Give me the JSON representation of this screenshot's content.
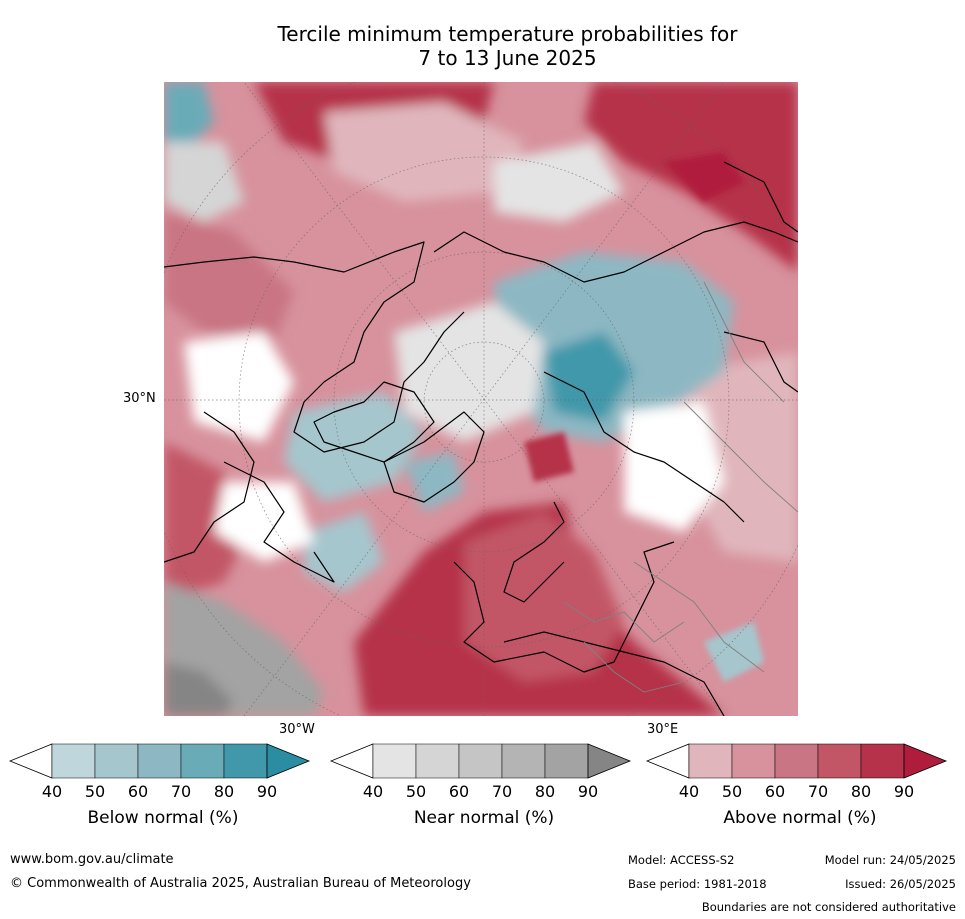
{
  "title_line1": "Tercile minimum temperature probabilities for",
  "title_line2": "7 to 13 June 2025",
  "map": {
    "labels": {
      "lat30": "30°N",
      "lon30w": "30°W",
      "lon30e": "30°E"
    },
    "colors": {
      "above": [
        "#e0b6bc",
        "#d7929d",
        "#c97583",
        "#c25666",
        "#b5324a",
        "#b01c3c"
      ],
      "below": [
        "#bfd6dc",
        "#a6c6cd",
        "#8db8c3",
        "#6aabb8",
        "#4198aa",
        "#2a8da2"
      ],
      "near": [
        "#e4e4e4",
        "#d5d5d5",
        "#c5c5c5",
        "#b4b4b4",
        "#a3a3a3",
        "#858585"
      ],
      "coastline": "#000000",
      "borders": "#808080"
    }
  },
  "colorbars": [
    {
      "title": "Below normal (%)",
      "ticks": [
        "40",
        "50",
        "60",
        "70",
        "80",
        "90"
      ],
      "colors": [
        "#bfd6dc",
        "#a6c6cd",
        "#8db8c3",
        "#6aabb8",
        "#4198aa",
        "#2a8da2"
      ]
    },
    {
      "title": "Near normal (%)",
      "ticks": [
        "40",
        "50",
        "60",
        "70",
        "80",
        "90"
      ],
      "colors": [
        "#e4e4e4",
        "#d5d5d5",
        "#c5c5c5",
        "#b4b4b4",
        "#a3a3a3",
        "#858585"
      ]
    },
    {
      "title": "Above normal (%)",
      "ticks": [
        "40",
        "50",
        "60",
        "70",
        "80",
        "90"
      ],
      "colors": [
        "#e0b6bc",
        "#d7929d",
        "#c97583",
        "#c25666",
        "#b5324a",
        "#b01c3c"
      ]
    }
  ],
  "footer": {
    "website": "www.bom.gov.au/climate",
    "copyright": "© Commonwealth of Australia 2025, Australian Bureau of Meteorology",
    "model": "Model: ACCESS-S2",
    "base_period": "Base period: 1981-2018",
    "model_run": "Model run: 24/05/2025",
    "issued": "Issued: 26/05/2025",
    "disclaimer": "Boundaries are not considered authoritative"
  }
}
